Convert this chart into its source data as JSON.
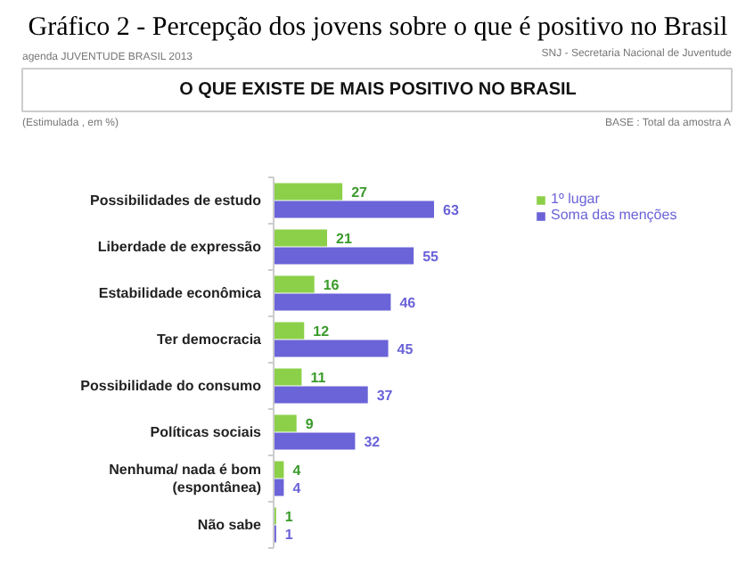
{
  "chart_data": {
    "type": "bar",
    "orientation": "horizontal",
    "title": "O QUE EXISTE DE MAIS POSITIVO NO BRASIL",
    "annotations": [
      "Gráfico 2 - Percepção dos jovens sobre o que é positivo no Brasil",
      "agenda JUVENTUDE BRASIL 2013",
      "SNJ - Secretaria Nacional de Juventude",
      "(Estimulada , em %)",
      "BASE : Total da amostra A"
    ],
    "categories": [
      "Possibilidades de estudo",
      "Liberdade de expressão",
      "Estabilidade econômica",
      "Ter democracia",
      "Possibilidade do consumo",
      "Políticas sociais",
      "Nenhuma/ nada é bom\n(espontânea)",
      "Não sabe"
    ],
    "series": [
      {
        "name": "1º lugar",
        "color": "#8cd04a",
        "values": [
          27,
          21,
          16,
          12,
          11,
          9,
          4,
          1
        ]
      },
      {
        "name": "Soma das menções",
        "color": "#6b63d8",
        "values": [
          63,
          55,
          46,
          45,
          37,
          32,
          4,
          1
        ]
      }
    ],
    "data_labels": true,
    "legend": "top right",
    "grid": false
  }
}
